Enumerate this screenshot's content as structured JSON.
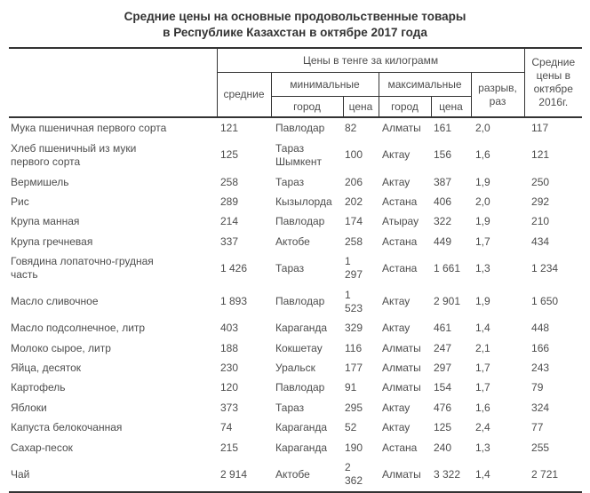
{
  "title": {
    "line1": "Средние цены на основные продовольственные товары",
    "line2": "в Республике Казахстан в октябре 2017 года"
  },
  "table": {
    "header": {
      "kg_group": "Цены в тенге за килограмм",
      "avg": "средние",
      "min_group": "минимальные",
      "max_group": "максимальные",
      "city": "город",
      "price": "цена",
      "gap": "разрыв, раз",
      "avg_oct_2016": "Средние цены в октябре 2016г."
    },
    "rows": [
      {
        "product": "Мука пшеничная первого сорта",
        "avg": "121",
        "min_city": "Павлодар",
        "min_price": "82",
        "max_city": "Алматы",
        "max_price": "161",
        "gap": "2,0",
        "avg_2016": "117"
      },
      {
        "product": "Хлеб пшеничный из муки первого сорта",
        "avg": "125",
        "min_city": "Тараз Шымкент",
        "min_price": "100",
        "max_city": "Актау",
        "max_price": "156",
        "gap": "1,6",
        "avg_2016": "121"
      },
      {
        "product": "Вермишель",
        "avg": "258",
        "min_city": "Тараз",
        "min_price": "206",
        "max_city": "Актау",
        "max_price": "387",
        "gap": "1,9",
        "avg_2016": "250"
      },
      {
        "product": "Рис",
        "avg": "289",
        "min_city": "Кызылорда",
        "min_price": "202",
        "max_city": "Астана",
        "max_price": "406",
        "gap": "2,0",
        "avg_2016": "292"
      },
      {
        "product": "Крупа манная",
        "avg": "214",
        "min_city": "Павлодар",
        "min_price": "174",
        "max_city": "Атырау",
        "max_price": "322",
        "gap": "1,9",
        "avg_2016": "210"
      },
      {
        "product": "Крупа гречневая",
        "avg": "337",
        "min_city": "Актобе",
        "min_price": "258",
        "max_city": "Астана",
        "max_price": "449",
        "gap": "1,7",
        "avg_2016": "434"
      },
      {
        "product": "Говядина лопаточно-грудная часть",
        "avg": "1 426",
        "min_city": "Тараз",
        "min_price": "1 297",
        "max_city": "Астана",
        "max_price": "1 661",
        "gap": "1,3",
        "avg_2016": "1 234"
      },
      {
        "product": "Масло сливочное",
        "avg": "1 893",
        "min_city": "Павлодар",
        "min_price": "1 523",
        "max_city": "Актау",
        "max_price": "2 901",
        "gap": "1,9",
        "avg_2016": "1 650"
      },
      {
        "product": "Масло подсолнечное, литр",
        "avg": "403",
        "min_city": "Караганда",
        "min_price": "329",
        "max_city": "Актау",
        "max_price": "461",
        "gap": "1,4",
        "avg_2016": "448"
      },
      {
        "product": "Молоко сырое, литр",
        "avg": "188",
        "min_city": "Кокшетау",
        "min_price": "116",
        "max_city": "Алматы",
        "max_price": "247",
        "gap": "2,1",
        "avg_2016": "166"
      },
      {
        "product": "Яйца, десяток",
        "avg": "230",
        "min_city": "Уральск",
        "min_price": "177",
        "max_city": "Алматы",
        "max_price": "297",
        "gap": "1,7",
        "avg_2016": "243"
      },
      {
        "product": "Картофель",
        "avg": "120",
        "min_city": "Павлодар",
        "min_price": "91",
        "max_city": "Алматы",
        "max_price": "154",
        "gap": "1,7",
        "avg_2016": "79"
      },
      {
        "product": "Яблоки",
        "avg": "373",
        "min_city": "Тараз",
        "min_price": "295",
        "max_city": "Актау",
        "max_price": "476",
        "gap": "1,6",
        "avg_2016": "324"
      },
      {
        "product": "Капуста белокочанная",
        "avg": "74",
        "min_city": "Караганда",
        "min_price": "52",
        "max_city": "Актау",
        "max_price": "125",
        "gap": "2,4",
        "avg_2016": "77"
      },
      {
        "product": "Сахар-песок",
        "avg": "215",
        "min_city": "Караганда",
        "min_price": "190",
        "max_city": "Астана",
        "max_price": "240",
        "gap": "1,3",
        "avg_2016": "255"
      },
      {
        "product": "Чай",
        "avg": "2 914",
        "min_city": "Актобе",
        "min_price": "2 362",
        "max_city": "Алматы",
        "max_price": "3 322",
        "gap": "1,4",
        "avg_2016": "2 721"
      }
    ]
  },
  "colors": {
    "text": "#4d4d4d",
    "title_text": "#333333",
    "border": "#333333",
    "background": "#ffffff"
  }
}
